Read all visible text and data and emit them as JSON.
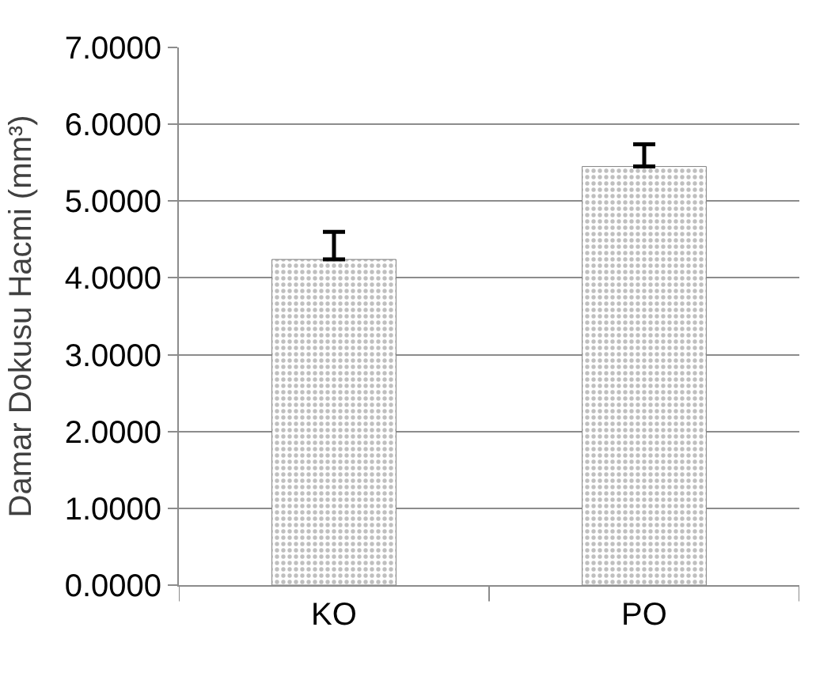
{
  "chart_data": {
    "type": "bar",
    "ylabel": "Damar Dokusu Hacmi (mm³)",
    "categories": [
      "KO",
      "PO"
    ],
    "values": [
      4.24,
      5.45
    ],
    "errors": [
      [
        4.24,
        4.6
      ],
      [
        5.45,
        5.74
      ]
    ],
    "color": "#808080",
    "ylim": [
      0,
      7
    ],
    "yticks": [
      {
        "value": 0,
        "label": "0.0000"
      },
      {
        "value": 1,
        "label": "1.0000"
      },
      {
        "value": 2,
        "label": "2.0000"
      },
      {
        "value": 3,
        "label": "3.0000"
      },
      {
        "value": 4,
        "label": "4.0000"
      },
      {
        "value": 5,
        "label": "5.0000"
      },
      {
        "value": 6,
        "label": "6.0000"
      },
      {
        "value": 7,
        "label": "7.0000"
      }
    ],
    "grid": "y"
  }
}
